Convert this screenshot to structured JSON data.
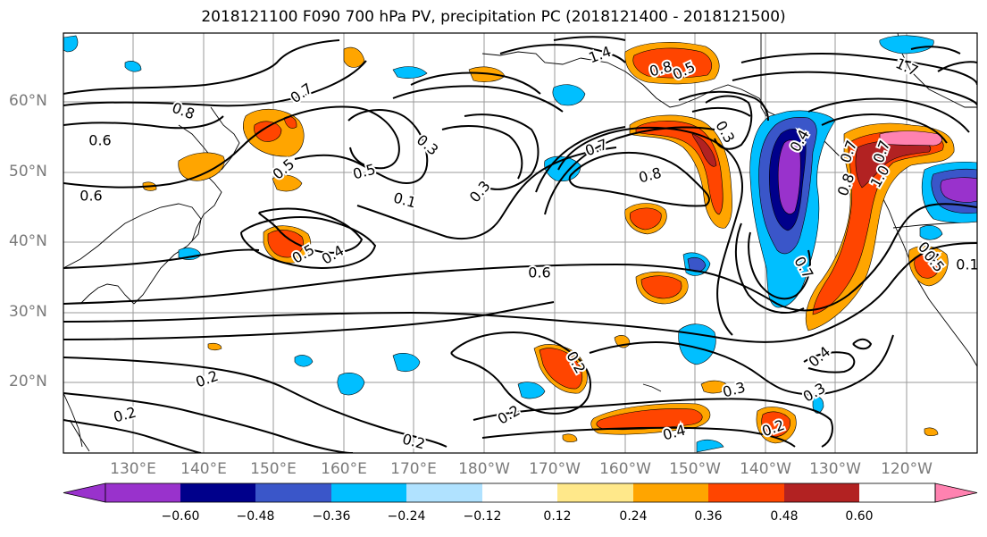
{
  "title": "2018121100 F090 700 hPa PV, precipitation PC (2018121400 - 2018121500)",
  "lat_labels": [
    "60°N",
    "50°N",
    "40°N",
    "30°N",
    "20°N"
  ],
  "lon_labels": [
    "130°E",
    "140°E",
    "150°E",
    "160°E",
    "170°E",
    "180°W",
    "170°W",
    "160°W",
    "150°W",
    "140°W",
    "130°W",
    "120°W"
  ],
  "colorbar": {
    "colors": [
      "#9932cc",
      "#00008b",
      "#3a56c9",
      "#00bfff",
      "#b0e2ff",
      "#ffffff",
      "#ffe88a",
      "#ffa500",
      "#ff4500",
      "#b22222",
      "#ff82b0"
    ],
    "tick_labels": [
      "−0.60",
      "−0.48",
      "−0.36",
      "−0.24",
      "−0.12",
      "0.12",
      "0.24",
      "0.36",
      "0.48",
      "0.60"
    ]
  },
  "pv_contour_labels": [
    "1.4",
    "0.8",
    "0.5",
    "0.8",
    "0.6",
    "0.6",
    "0.7",
    "0.5",
    "0.5",
    "0.3",
    "0.3",
    "0.1",
    "0.6",
    "0.5",
    "0.4",
    "0.7",
    "0.8",
    "0.3",
    "0.4",
    "0.7",
    "0.8",
    "0.7",
    "0.4",
    "0.5",
    "0.2",
    "0.2",
    "0.2",
    "0.2",
    "0.2",
    "0.3",
    "0.4",
    "0.2",
    "0.3",
    "0.4",
    "0.1",
    "1.0",
    "0.7",
    "1.7"
  ]
}
